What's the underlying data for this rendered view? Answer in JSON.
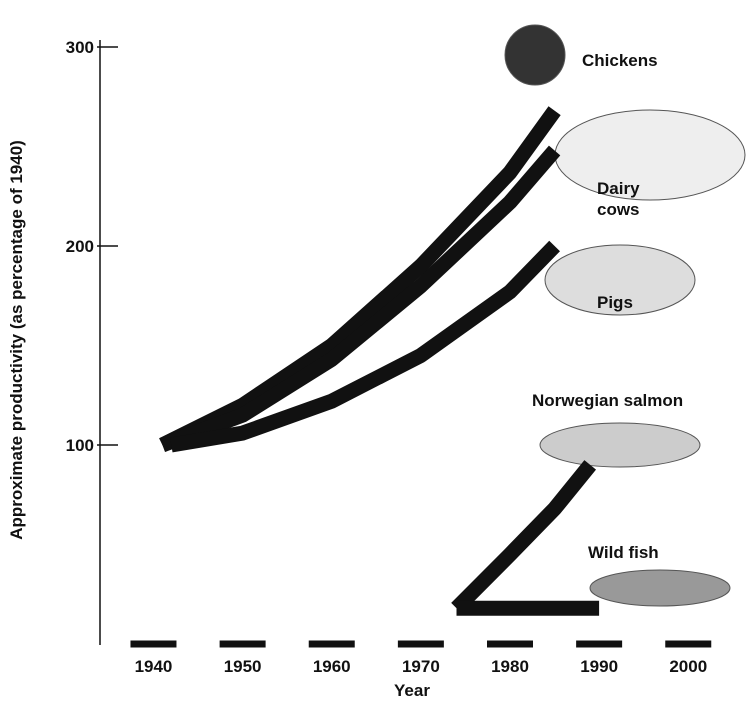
{
  "chart_data": {
    "type": "line",
    "y_label": "Approximate productivity (as percentage of 1940)",
    "x_label": "Year",
    "xlim": [
      1934,
      2003
    ],
    "ylim": [
      0,
      300
    ],
    "xticks": [
      1940,
      1950,
      1960,
      1970,
      1980,
      1990,
      2000
    ],
    "yticks": [
      100,
      200,
      300
    ],
    "series": [
      {
        "name": "Chickens",
        "color": "#111111",
        "x": [
          1941,
          1950,
          1960,
          1970,
          1980,
          1985
        ],
        "values": [
          100,
          120,
          150,
          190,
          237,
          268
        ]
      },
      {
        "name": "Dairy cows",
        "color": "#111111",
        "x": [
          1941,
          1950,
          1960,
          1970,
          1980,
          1985
        ],
        "values": [
          100,
          115,
          143,
          180,
          222,
          248
        ]
      },
      {
        "name": "Pigs",
        "color": "#111111",
        "x": [
          1942,
          1950,
          1960,
          1970,
          1980,
          1985
        ],
        "values": [
          100,
          106,
          122,
          145,
          177,
          200
        ]
      },
      {
        "name": "Norwegian salmon",
        "color": "#111111",
        "x": [
          1974,
          1980,
          1985,
          1989
        ],
        "values": [
          18,
          45,
          68,
          90
        ]
      },
      {
        "name": "Wild fish",
        "color": "#111111",
        "x": [
          1974,
          1990
        ],
        "values": [
          18,
          18
        ]
      }
    ]
  }
}
